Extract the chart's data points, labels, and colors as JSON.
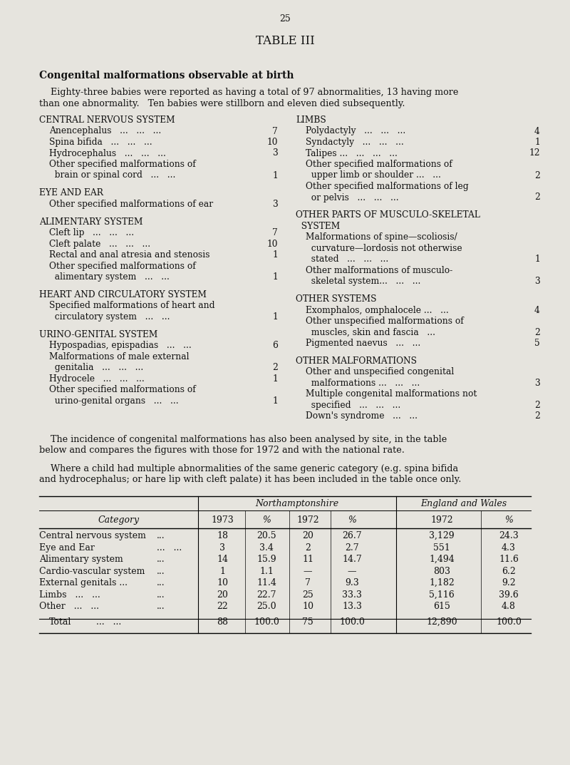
{
  "page_number": "25",
  "title": "TABLE III",
  "subtitle": "Congenital malformations observable at birth",
  "intro_line1": "    Eighty-three babies were reported as having a total of 97 abnormalities, 13 having more",
  "intro_line2": "than one abnormality.   Ten babies were stillborn and eleven died subsequently.",
  "left_sections": [
    {
      "heading": "CENTRAL NERVOUS SYSTEM",
      "items": [
        [
          "Anencephalus   ...   ...   ...",
          "7"
        ],
        [
          "Spina bifida   ...   ...   ...",
          "10"
        ],
        [
          "Hydrocephalus   ...   ...   ...",
          "3"
        ],
        [
          "Other specified malformations of",
          null
        ],
        [
          "  brain or spinal cord   ...   ...",
          "1"
        ]
      ]
    },
    {
      "heading": "EYE AND EAR",
      "items": [
        [
          "Other specified malformations of ear",
          "3"
        ]
      ]
    },
    {
      "heading": "ALIMENTARY SYSTEM",
      "items": [
        [
          "Cleft lip   ...   ...   ...",
          "7"
        ],
        [
          "Cleft palate   ...   ...   ...",
          "10"
        ],
        [
          "Rectal and anal atresia and stenosis",
          "1"
        ],
        [
          "Other specified malformations of",
          null
        ],
        [
          "  alimentary system   ...   ...",
          "1"
        ]
      ]
    },
    {
      "heading": "HEART AND CIRCULATORY SYSTEM",
      "items": [
        [
          "Specified malformations of heart and",
          null
        ],
        [
          "  circulatory system   ...   ...",
          "1"
        ]
      ]
    },
    {
      "heading": "URINO-GENITAL SYSTEM",
      "items": [
        [
          "Hypospadias, epispadias   ...   ...",
          "6"
        ],
        [
          "Malformations of male external",
          null
        ],
        [
          "  genitalia   ...   ...   ...",
          "2"
        ],
        [
          "Hydrocele   ...   ...   ...",
          "1"
        ],
        [
          "Other specified malformations of",
          null
        ],
        [
          "  urino-genital organs   ...   ...",
          "1"
        ]
      ]
    }
  ],
  "right_sections": [
    {
      "heading": "LIMBS",
      "items": [
        [
          "Polydactyly   ...   ...   ...",
          "4"
        ],
        [
          "Syndactyly   ...   ...   ...",
          "1"
        ],
        [
          "Talipes ...   ...   ...   ...",
          "12"
        ],
        [
          "Other specified malformations of",
          null
        ],
        [
          "  upper limb or shoulder ...   ...",
          "2"
        ],
        [
          "Other specified malformations of leg",
          null
        ],
        [
          "  or pelvis   ...   ...   ...",
          "2"
        ]
      ]
    },
    {
      "heading": "OTHER PARTS OF MUSCULO-SKELETAL",
      "heading2": "  SYSTEM",
      "items": [
        [
          "Malformations of spine—scoliosis/",
          null
        ],
        [
          "  curvature—lordosis not otherwise",
          null
        ],
        [
          "  stated   ...   ...   ...",
          "1"
        ],
        [
          "Other malformations of musculo-",
          null
        ],
        [
          "  skeletal system...   ...   ...",
          "3"
        ]
      ]
    },
    {
      "heading": "OTHER SYSTEMS",
      "items": [
        [
          "Exomphalos, omphalocele ...   ...",
          "4"
        ],
        [
          "Other unspecified malformations of",
          null
        ],
        [
          "  muscles, skin and fascia   ...",
          "2"
        ],
        [
          "Pigmented naevus   ...   ...",
          "5"
        ]
      ]
    },
    {
      "heading": "OTHER MALFORMATIONS",
      "items": [
        [
          "Other and unspecified congenital",
          null
        ],
        [
          "  malformations ...   ...   ...",
          "3"
        ],
        [
          "Multiple congenital malformations not",
          null
        ],
        [
          "  specified   ...   ...   ...",
          "2"
        ],
        [
          "Down's syndrome   ...   ...",
          "2"
        ]
      ]
    }
  ],
  "middle_text1a": "    The incidence of congenital malformations has also been analysed by site, in the table",
  "middle_text1b": "below and compares the figures with those for 1972 and with the national rate.",
  "middle_text2a": "    Where a child had multiple abnormalities of the same generic category (e.g. spina bifida",
  "middle_text2b": "and hydrocephalus; or hare lip with cleft palate) it has been included in the table once only.",
  "table_group1": "Northamptonshire",
  "table_group2": "England and Wales",
  "table_rows": [
    [
      "Central nervous system",
      "...",
      "18",
      "20.5",
      "20",
      "26.7",
      "3,129",
      "24.3"
    ],
    [
      "Eye and Ear",
      "...",
      "3",
      "3.4",
      "2",
      "2.7",
      "551",
      "4.3"
    ],
    [
      "Alimentary system",
      "...",
      "14",
      "15.9",
      "11",
      "14.7",
      "1,494",
      "11.6"
    ],
    [
      "Cardio-vascular system",
      "...",
      "1",
      "1.1",
      "—",
      "—",
      "803",
      "6.2"
    ],
    [
      "External genitals ...",
      "...",
      "10",
      "11.4",
      "7",
      "9.3",
      "1,182",
      "9.2"
    ],
    [
      "Limbs   ...   ...",
      "...",
      "20",
      "22.7",
      "25",
      "33.3",
      "5,116",
      "39.6"
    ],
    [
      "Other   ...   ...",
      "...",
      "22",
      "25.0",
      "10",
      "13.3",
      "615",
      "4.8"
    ]
  ],
  "table_total": [
    "Total",
    "...",
    "88",
    "100.0",
    "75",
    "100.0",
    "12,890",
    "100.0"
  ],
  "bg_color": "#e6e4de",
  "text_color": "#111111"
}
